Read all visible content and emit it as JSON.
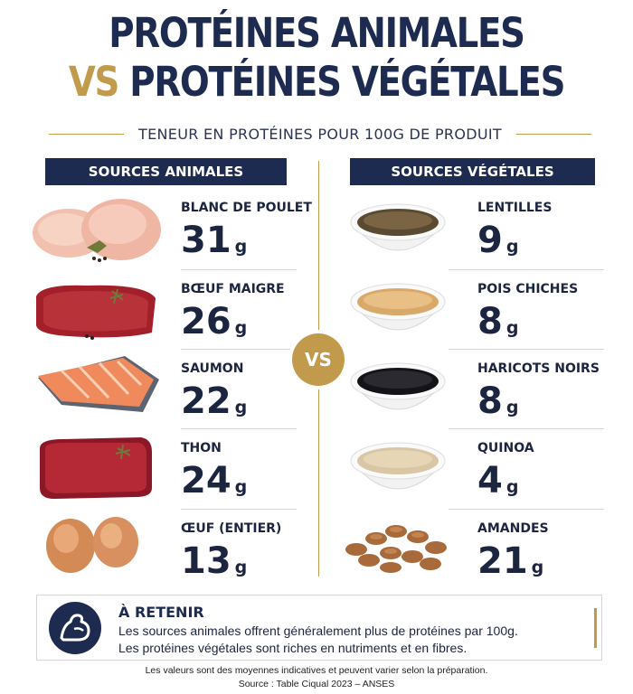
{
  "title": {
    "line1": "PROTÉINES ANIMALES",
    "vs_prefix": "VS",
    "line2": "PROTÉINES VÉGÉTALES"
  },
  "subtitle": "TENEUR EN PROTÉINES POUR 100G DE PRODUIT",
  "columns": {
    "animal_header": "SOURCES ANIMALES",
    "vegetal_header": "SOURCES VÉGÉTALES"
  },
  "vs_badge": "VS",
  "animal_items": [
    {
      "name": "BLANC DE POULET",
      "value": "31",
      "unit": "g",
      "icon": "chicken-breast-icon"
    },
    {
      "name": "BŒUF MAIGRE",
      "value": "26",
      "unit": "g",
      "icon": "beef-steak-icon"
    },
    {
      "name": "SAUMON",
      "value": "22",
      "unit": "g",
      "icon": "salmon-fillet-icon"
    },
    {
      "name": "THON",
      "value": "24",
      "unit": "g",
      "icon": "tuna-steak-icon"
    },
    {
      "name": "ŒUF (ENTIER)",
      "value": "13",
      "unit": "g",
      "icon": "eggs-icon"
    }
  ],
  "vegetal_items": [
    {
      "name": "LENTILLES",
      "value": "9",
      "unit": "g",
      "icon": "lentils-bowl-icon"
    },
    {
      "name": "POIS CHICHES",
      "value": "8",
      "unit": "g",
      "icon": "chickpeas-bowl-icon"
    },
    {
      "name": "HARICOTS NOIRS",
      "value": "8",
      "unit": "g",
      "icon": "black-beans-bowl-icon"
    },
    {
      "name": "QUINOA",
      "value": "4",
      "unit": "g",
      "icon": "quinoa-bowl-icon"
    },
    {
      "name": "AMANDES",
      "value": "21",
      "unit": "g",
      "icon": "almonds-icon"
    }
  ],
  "retenir": {
    "title": "À RETENIR",
    "line1": "Les sources animales offrent généralement plus de protéines par 100g.",
    "line2": "Les protéines végétales sont riches en nutriments et en fibres.",
    "icon": "flexed-arm-icon"
  },
  "footer": {
    "note": "Les valeurs sont des moyennes indicatives et peuvent varier selon la préparation.",
    "source": "Source : Table Ciqual 2023 – ANSES"
  },
  "colors": {
    "navy": "#1c2b4f",
    "gold": "#c29a4c"
  }
}
